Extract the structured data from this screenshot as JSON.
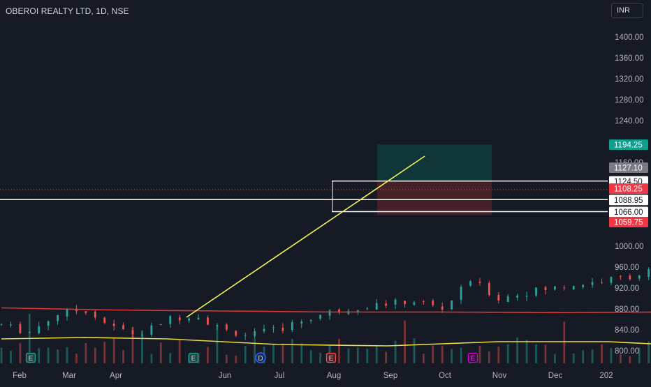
{
  "header": {
    "symbol_title": "OBEROI REALTY LTD, 1D, NSE",
    "currency": "INR"
  },
  "colors": {
    "background": "#161a25",
    "up": "#26a69a",
    "down": "#ef5350",
    "ma_short": "#e53935",
    "ma_volume": "#f5e642",
    "trendline": "#f2f25a",
    "level_line": "#ffffff",
    "target_zone": "#0f3a3a",
    "stop_zone": "#4a2228",
    "axis_text": "#b2b5be"
  },
  "chart_data": {
    "type": "candlestick",
    "price_axis": {
      "ticks": [
        "1400.00",
        "1360.00",
        "1320.00",
        "1280.00",
        "1240.00",
        "1160.00",
        "1000.00",
        "960.00",
        "920.00",
        "880.00",
        "840.00",
        "800.00"
      ],
      "range": [
        782,
        1422
      ]
    },
    "time_axis": {
      "ticks": [
        "Feb",
        "Mar",
        "Apr",
        "Jun",
        "Jul",
        "Aug",
        "Sep",
        "Oct",
        "Nov",
        "Dec",
        "202"
      ]
    },
    "price_badges": [
      {
        "label": "1194.25",
        "value": 1194.25,
        "kind": "target"
      },
      {
        "label": "1127.10",
        "value": 1127.1,
        "kind": "last-high"
      },
      {
        "label": "1124.50",
        "value": 1124.5,
        "kind": "level"
      },
      {
        "label": "1108.25",
        "value": 1108.25,
        "kind": "current"
      },
      {
        "label": "1088.95",
        "value": 1088.95,
        "kind": "level"
      },
      {
        "label": "1066.00",
        "value": 1066.0,
        "kind": "level"
      },
      {
        "label": "1059.75",
        "value": 1059.75,
        "kind": "stop"
      }
    ],
    "horizontal_levels": [
      1124.5,
      1088.95,
      1066.0
    ],
    "current_price": 1108.25,
    "position_tool": {
      "entry": 1124.5,
      "target": 1194.25,
      "stop": 1059.75,
      "start_date": "Aug 20",
      "end_date": "Oct 20"
    },
    "trendline": {
      "from": {
        "date": "Apr 22",
        "price": 864
      },
      "to": {
        "date": "Sep 27",
        "price": 1172
      }
    },
    "event_markers": [
      {
        "label": "E",
        "date": "Feb 12",
        "kind": "earnings"
      },
      {
        "label": "E",
        "date": "May 25",
        "kind": "earnings"
      },
      {
        "label": "D",
        "date": "Jun 29",
        "kind": "dividend"
      },
      {
        "label": "E",
        "date": "Jul 28",
        "kind": "earnings"
      },
      {
        "label": "E",
        "date": "Oct 14",
        "kind": "earnings-upcoming"
      }
    ],
    "series": [
      {
        "name": "",
        "kind": "moving-average",
        "points": [
          [
            0,
            882
          ],
          [
            40,
            878
          ],
          [
            80,
            876
          ],
          [
            120,
            874
          ],
          [
            160,
            874
          ],
          [
            200,
            873
          ],
          [
            240,
            874
          ],
          [
            280,
            877
          ],
          [
            320,
            884
          ],
          [
            360,
            890
          ],
          [
            400,
            900
          ],
          [
            440,
            912
          ],
          [
            480,
            935
          ]
        ]
      },
      {
        "name": "",
        "kind": "volume-moving-average",
        "points": [
          [
            0,
            805
          ],
          [
            30,
            806
          ],
          [
            60,
            805
          ],
          [
            100,
            801
          ],
          [
            140,
            800
          ],
          [
            180,
            803
          ],
          [
            220,
            803
          ],
          [
            260,
            799
          ],
          [
            300,
            806
          ],
          [
            340,
            806
          ],
          [
            380,
            803
          ],
          [
            420,
            802
          ],
          [
            460,
            802
          ],
          [
            480,
            804
          ]
        ]
      }
    ]
  }
}
